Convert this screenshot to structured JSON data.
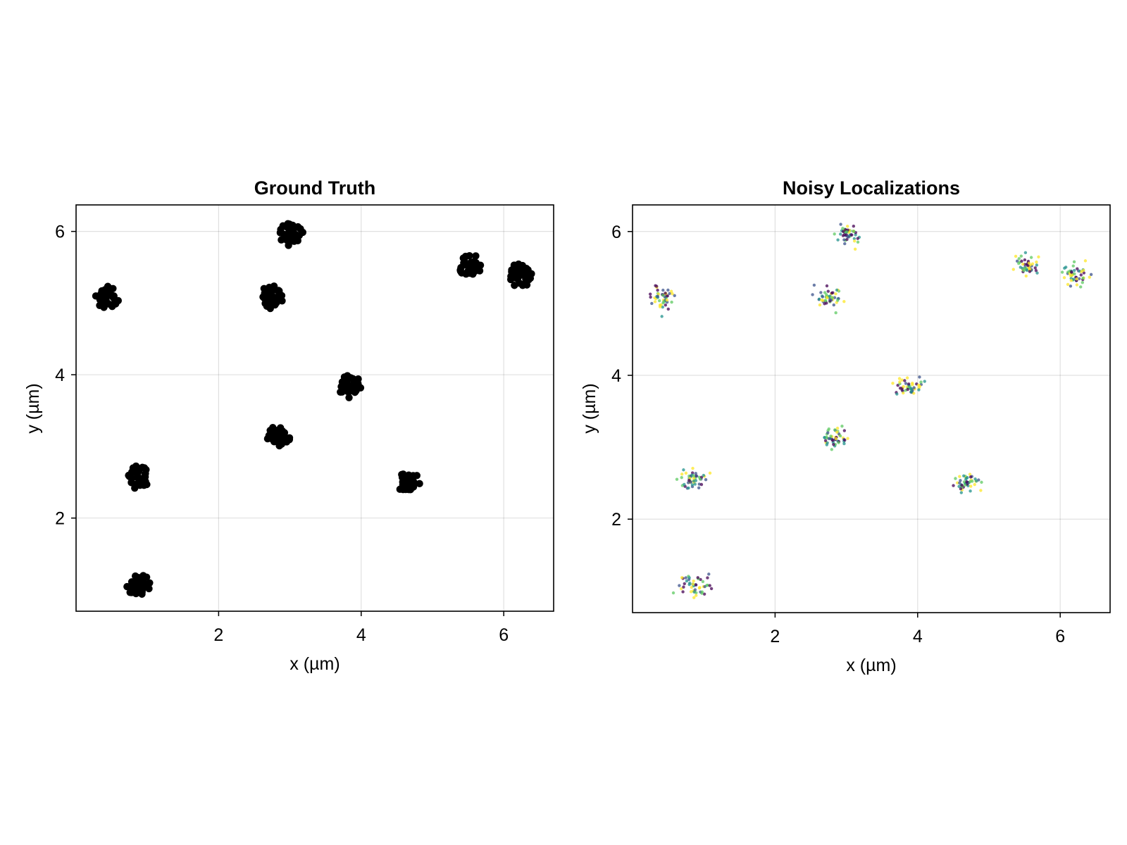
{
  "figure": {
    "background": "#ffffff"
  },
  "chart_data": [
    {
      "type": "scatter",
      "title": "Ground Truth",
      "xlabel": "x (µm)",
      "ylabel": "y (µm)",
      "xlim": [
        0.0,
        6.7
      ],
      "ylim": [
        0.7,
        6.37
      ],
      "xticks": [
        2,
        4,
        6
      ],
      "yticks": [
        2,
        4,
        6
      ],
      "grid": true,
      "marker_color": "#000000",
      "series": [
        {
          "clusters": [
            {
              "x": 0.43,
              "y": 5.08
            },
            {
              "x": 0.88,
              "y": 2.57
            },
            {
              "x": 0.87,
              "y": 1.06
            },
            {
              "x": 3.02,
              "y": 5.96
            },
            {
              "x": 2.75,
              "y": 5.08
            },
            {
              "x": 2.85,
              "y": 3.14
            },
            {
              "x": 3.85,
              "y": 3.84
            },
            {
              "x": 4.67,
              "y": 2.5
            },
            {
              "x": 5.53,
              "y": 5.51
            },
            {
              "x": 6.23,
              "y": 5.39
            }
          ]
        }
      ]
    },
    {
      "type": "scatter",
      "title": "Noisy Localizations",
      "xlabel": "x (µm)",
      "ylabel": "y (µm)",
      "xlim": [
        0.0,
        6.7
      ],
      "ylim": [
        0.7,
        6.37
      ],
      "xticks": [
        2,
        4,
        6
      ],
      "yticks": [
        2,
        4,
        6
      ],
      "grid": true,
      "colormap": [
        "#440154",
        "#3b528b",
        "#21918c",
        "#5ec962",
        "#fde725"
      ],
      "series": [
        {
          "clusters": [
            {
              "x": 0.43,
              "y": 5.08
            },
            {
              "x": 0.88,
              "y": 2.57
            },
            {
              "x": 0.87,
              "y": 1.06
            },
            {
              "x": 3.02,
              "y": 5.96
            },
            {
              "x": 2.75,
              "y": 5.08
            },
            {
              "x": 2.85,
              "y": 3.14
            },
            {
              "x": 3.85,
              "y": 3.84
            },
            {
              "x": 4.67,
              "y": 2.5
            },
            {
              "x": 5.53,
              "y": 5.51
            },
            {
              "x": 6.23,
              "y": 5.39
            }
          ]
        }
      ]
    }
  ]
}
